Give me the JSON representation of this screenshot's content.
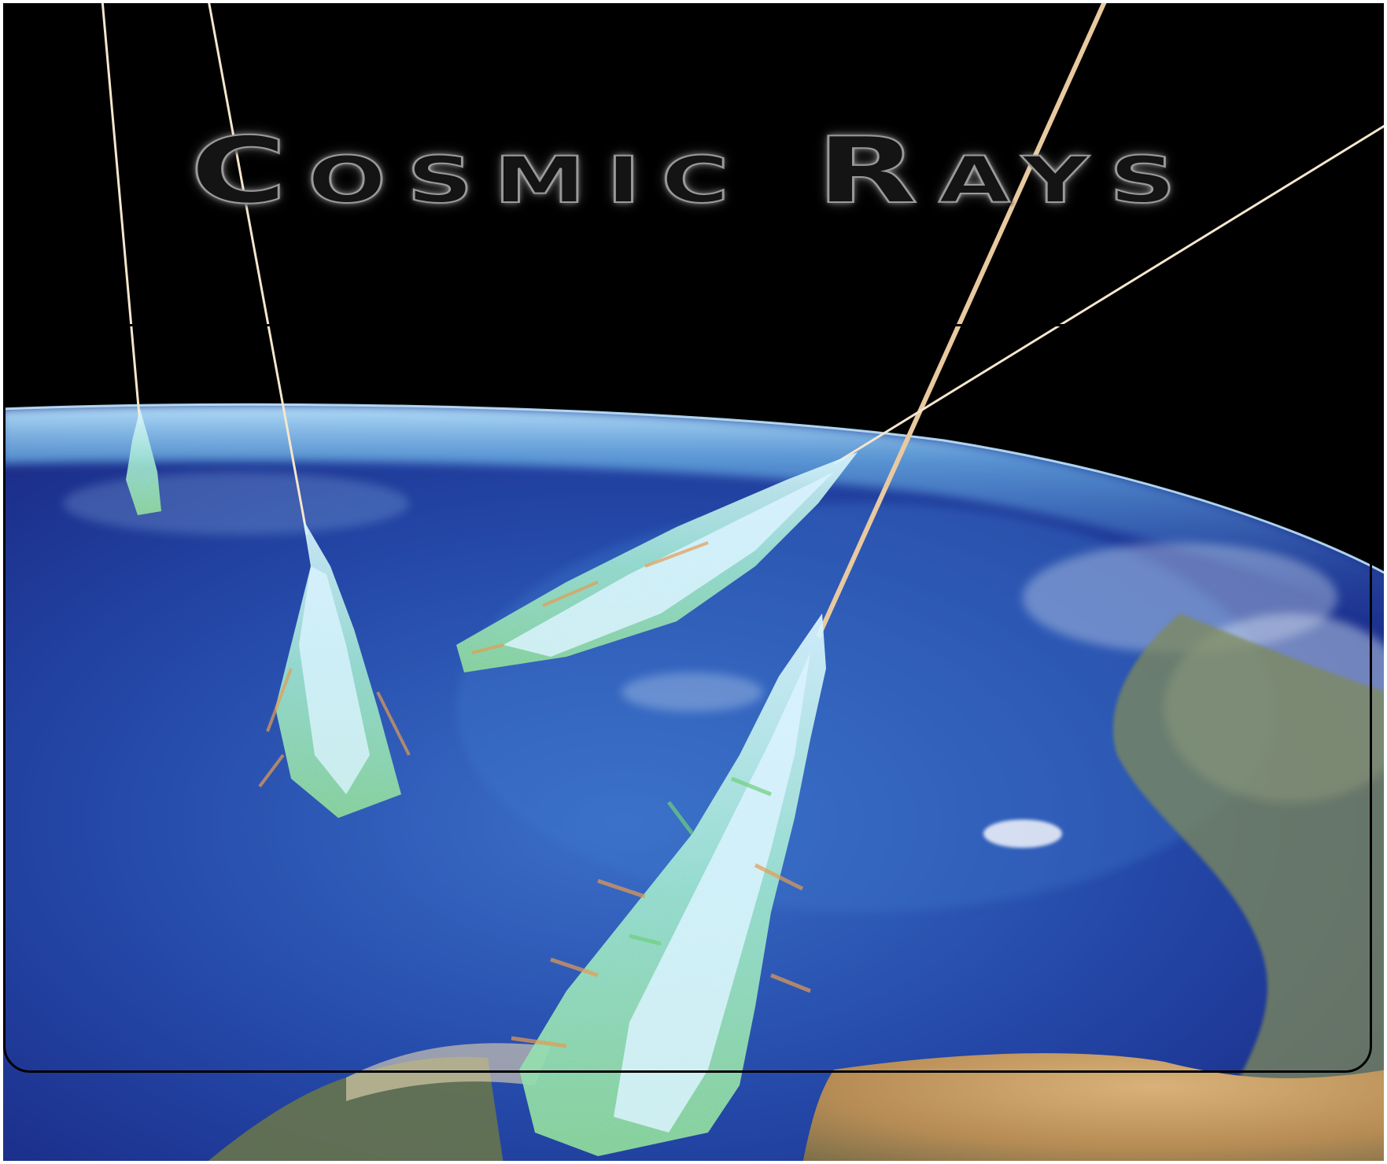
{
  "title": "Cosmic Rays",
  "colors": {
    "space": "#000000",
    "ocean_deep": "#1a2c8c",
    "ocean_light": "#3f7fd0",
    "atmosphere_glow": "#7fc6f0",
    "land": "#c9a36a",
    "shower_core": "#bfe8f2",
    "shower_green": "#6fd07a",
    "shower_orange": "#e89a4a",
    "ray_line": "#f3e1c4"
  },
  "scene": {
    "description_icon": "earth-globe",
    "shower_count": 4,
    "primary_ray_count": 4
  }
}
